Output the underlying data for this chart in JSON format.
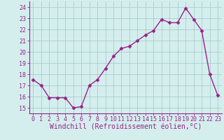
{
  "x": [
    0,
    1,
    2,
    3,
    4,
    5,
    6,
    7,
    8,
    9,
    10,
    11,
    12,
    13,
    14,
    15,
    16,
    17,
    18,
    19,
    20,
    21,
    22,
    23
  ],
  "y": [
    17.5,
    17.0,
    15.9,
    15.9,
    15.9,
    15.0,
    15.1,
    17.0,
    17.5,
    18.5,
    19.6,
    20.3,
    20.5,
    21.0,
    21.5,
    21.9,
    22.9,
    22.6,
    22.6,
    23.9,
    22.9,
    21.9,
    18.0,
    16.1
  ],
  "color": "#992288",
  "bg_color": "#d4eeee",
  "grid_color": "#aacccc",
  "xlabel": "Windchill (Refroidissement éolien,°C)",
  "ylim": [
    14.5,
    24.5
  ],
  "yticks": [
    15,
    16,
    17,
    18,
    19,
    20,
    21,
    22,
    23,
    24
  ],
  "xticks": [
    0,
    1,
    2,
    3,
    4,
    5,
    6,
    7,
    8,
    9,
    10,
    11,
    12,
    13,
    14,
    15,
    16,
    17,
    18,
    19,
    20,
    21,
    22,
    23
  ],
  "marker": "D",
  "markersize": 2.5,
  "linewidth": 1.0,
  "xlabel_fontsize": 7.0,
  "tick_fontsize": 6.0,
  "xlabel_color": "#992288",
  "tick_color": "#992288",
  "axis_color": "#992288"
}
